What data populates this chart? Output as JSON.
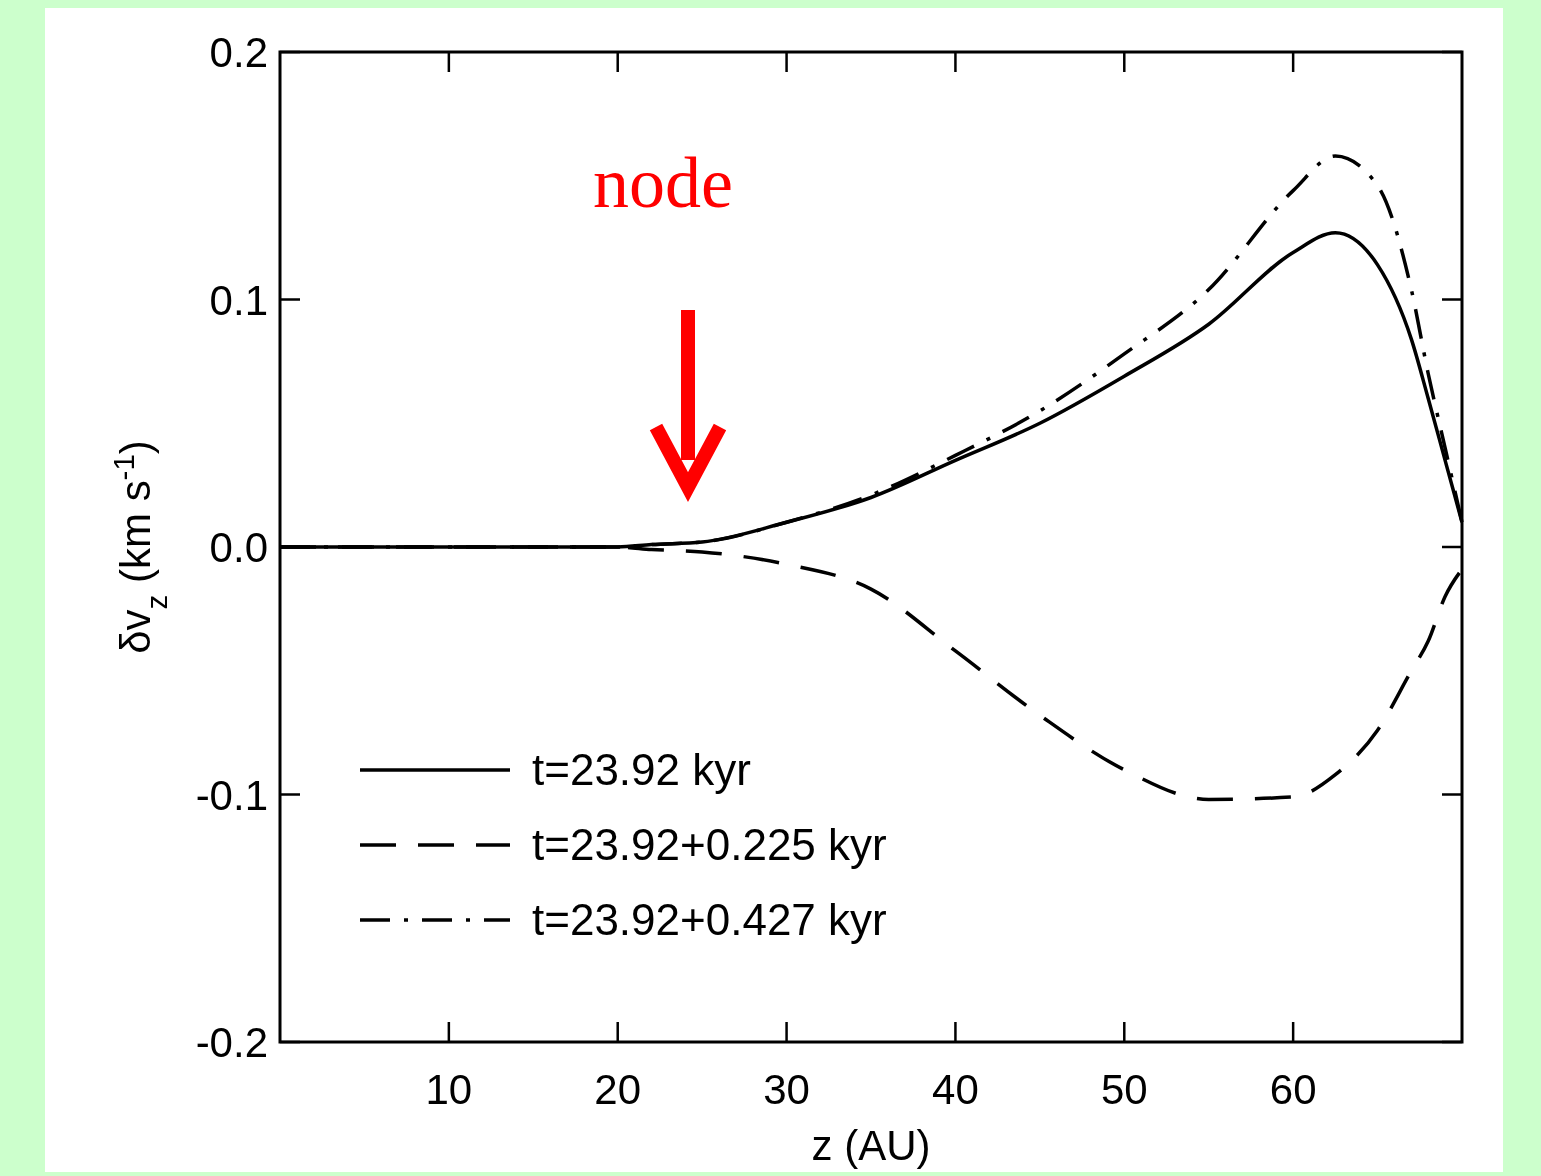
{
  "chart_data": {
    "type": "line",
    "xlabel": "z (AU)",
    "ylabel": "δv$_{z}$ (km s$^{-1}$)",
    "xlim": [
      0,
      70
    ],
    "xticks": [
      10,
      20,
      30,
      40,
      50,
      60
    ],
    "ylim": [
      -0.2,
      0.2
    ],
    "yticks": [
      {
        "value": -0.2,
        "label": "-0.2"
      },
      {
        "value": -0.1,
        "label": "-0.1"
      },
      {
        "value": 0,
        "label": "0.0"
      },
      0.1,
      0.2
    ],
    "x": [
      0,
      5,
      10,
      15,
      20,
      22,
      25,
      30,
      35,
      40,
      45,
      50,
      55,
      60,
      62.5,
      65,
      67,
      68,
      69,
      70
    ],
    "series": [
      {
        "name": "t=23.92 kyr",
        "color": "#000000",
        "line_style": "solid",
        "values": [
          0,
          0,
          0,
          0,
          0,
          0.001,
          0.002,
          0.01,
          0.02,
          0.035,
          0.05,
          0.069,
          0.09,
          0.119,
          0.127,
          0.114,
          0.084,
          0.06,
          0.035,
          0.01
        ]
      },
      {
        "name": "t=23.92+0.225 kyr",
        "color": "#000000",
        "line_style": "dashed",
        "values": [
          0,
          0,
          0,
          0,
          0,
          -0.001,
          -0.002,
          -0.007,
          -0.017,
          -0.042,
          -0.068,
          -0.09,
          -0.102,
          -0.101,
          -0.092,
          -0.074,
          -0.05,
          -0.038,
          -0.02,
          -0.009
        ]
      },
      {
        "name": "t=23.92+0.427 kyr",
        "color": "#000000",
        "line_style": "dashdot",
        "values": [
          0,
          0,
          0,
          0,
          0,
          0.001,
          0.002,
          0.01,
          0.021,
          0.037,
          0.055,
          0.078,
          0.104,
          0.144,
          0.158,
          0.146,
          0.104,
          0.07,
          0.04,
          0.01
        ]
      }
    ],
    "legend": "bottom left",
    "grid": false,
    "annotations": [
      "node"
    ]
  }
}
